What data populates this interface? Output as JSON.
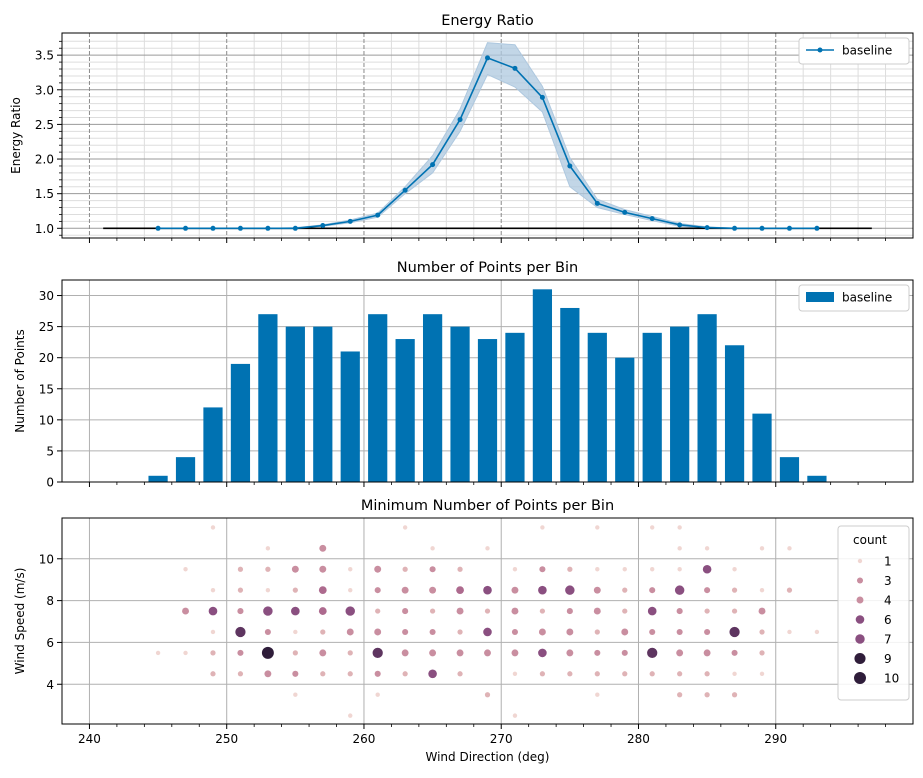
{
  "colors": {
    "baseline": "#0072b2",
    "band": "#aec8df",
    "grid_major": "#b0b0b0",
    "grid_minor": "#dddddd",
    "axis": "#000000",
    "hue": [
      "#f0d6d2",
      "#dfb3b6",
      "#c98ea0",
      "#ad6a8e",
      "#8a4f80",
      "#5e3560",
      "#2f1d3a"
    ]
  },
  "chart_data": [
    {
      "type": "line",
      "title": "Energy Ratio",
      "xlabel": "",
      "ylabel": "Energy Ratio",
      "xlim": [
        238,
        300
      ],
      "ylim": [
        0.86,
        3.82
      ],
      "yticks": [
        1.0,
        1.5,
        2.0,
        2.5,
        3.0,
        3.5
      ],
      "ytick_labels": [
        "1.0",
        "1.5",
        "2.0",
        "2.5",
        "3.0",
        "3.5"
      ],
      "grid": "major and minor",
      "legend": "top-right",
      "series": [
        {
          "name": "baseline",
          "x": [
            245,
            247,
            249,
            251,
            253,
            255,
            257,
            259,
            261,
            263,
            265,
            267,
            269,
            271,
            273,
            275,
            277,
            279,
            281,
            283,
            285,
            287,
            289,
            291,
            293
          ],
          "values": [
            1.0,
            1.0,
            1.0,
            1.0,
            1.0,
            1.0,
            1.04,
            1.1,
            1.19,
            1.55,
            1.92,
            2.57,
            3.46,
            3.31,
            2.89,
            1.9,
            1.36,
            1.23,
            1.14,
            1.05,
            1.01,
            1.0,
            1.0,
            1.0,
            1.0
          ],
          "lower": [
            1.0,
            1.0,
            1.0,
            1.0,
            1.0,
            1.0,
            1.03,
            1.08,
            1.16,
            1.5,
            1.8,
            2.4,
            3.22,
            3.04,
            2.68,
            1.6,
            1.3,
            1.2,
            1.11,
            1.03,
            1.0,
            1.0,
            1.0,
            1.0,
            1.0
          ],
          "upper": [
            1.0,
            1.0,
            1.0,
            1.0,
            1.0,
            1.01,
            1.05,
            1.12,
            1.22,
            1.6,
            2.05,
            2.72,
            3.68,
            3.65,
            3.05,
            2.02,
            1.42,
            1.27,
            1.17,
            1.07,
            1.02,
            1.0,
            1.0,
            1.0,
            1.0
          ]
        }
      ],
      "reference_line": {
        "x": [
          241,
          297
        ],
        "y": 1.0
      }
    },
    {
      "type": "bar",
      "title": "Number of Points per Bin",
      "xlabel": "",
      "ylabel": "Number of Points",
      "xlim": [
        238,
        300
      ],
      "ylim": [
        0,
        32.5
      ],
      "yticks": [
        0,
        5,
        10,
        15,
        20,
        25,
        30
      ],
      "grid": "major",
      "legend": "top-right",
      "bar_width": 1.4,
      "x": [
        245,
        247,
        249,
        251,
        253,
        255,
        257,
        259,
        261,
        263,
        265,
        267,
        269,
        271,
        273,
        275,
        277,
        279,
        281,
        283,
        285,
        287,
        289,
        291,
        293
      ],
      "series": [
        {
          "name": "baseline",
          "values": [
            1,
            4,
            12,
            19,
            27,
            25,
            25,
            21,
            27,
            23,
            27,
            25,
            23,
            24,
            31,
            28,
            24,
            20,
            24,
            25,
            27,
            22,
            11,
            4,
            1
          ]
        }
      ]
    },
    {
      "type": "scatter",
      "title": "Minimum Number of Points per Bin",
      "xlabel": "Wind Direction (deg)",
      "ylabel": "Wind Speed (m/s)",
      "xlim": [
        238,
        300
      ],
      "ylim": [
        2.1,
        11.95
      ],
      "xticks": [
        240,
        250,
        260,
        270,
        280,
        290
      ],
      "yticks": [
        4,
        6,
        8,
        10
      ],
      "grid": "major",
      "legend": "top-right",
      "legend_title": "count",
      "legend_entries": [
        1,
        3,
        4,
        6,
        7,
        9,
        10
      ],
      "points": [
        [
          245,
          5.5,
          1
        ],
        [
          247,
          9.5,
          1
        ],
        [
          247,
          7.5,
          4
        ],
        [
          247,
          5.5,
          1
        ],
        [
          249,
          11.5,
          1
        ],
        [
          249,
          8.5,
          1
        ],
        [
          249,
          7.5,
          6
        ],
        [
          249,
          6.5,
          1
        ],
        [
          249,
          5.5,
          2
        ],
        [
          249,
          4.5,
          2
        ],
        [
          251,
          9.5,
          2
        ],
        [
          251,
          8.5,
          2
        ],
        [
          251,
          7.5,
          3
        ],
        [
          251,
          6.5,
          8
        ],
        [
          251,
          5.5,
          3
        ],
        [
          251,
          4.5,
          2
        ],
        [
          253,
          10.5,
          1
        ],
        [
          253,
          9.5,
          2
        ],
        [
          253,
          8.5,
          1
        ],
        [
          253,
          7.5,
          7
        ],
        [
          253,
          6.5,
          3
        ],
        [
          253,
          5.5,
          10
        ],
        [
          253,
          4.5,
          4
        ],
        [
          255,
          9.5,
          4
        ],
        [
          255,
          8.5,
          2
        ],
        [
          255,
          7.5,
          6
        ],
        [
          255,
          6.5,
          1
        ],
        [
          255,
          5.5,
          2
        ],
        [
          255,
          4.5,
          3
        ],
        [
          255,
          3.5,
          1
        ],
        [
          257,
          10.5,
          4
        ],
        [
          257,
          9.5,
          4
        ],
        [
          257,
          8.5,
          5
        ],
        [
          257,
          7.5,
          5
        ],
        [
          257,
          6.5,
          2
        ],
        [
          257,
          5.5,
          4
        ],
        [
          257,
          4.5,
          2
        ],
        [
          259,
          9.5,
          1
        ],
        [
          259,
          8.5,
          1
        ],
        [
          259,
          7.5,
          7
        ],
        [
          259,
          6.5,
          4
        ],
        [
          259,
          5.5,
          2
        ],
        [
          259,
          4.5,
          2
        ],
        [
          259,
          2.5,
          1
        ],
        [
          261,
          9.5,
          4
        ],
        [
          261,
          8.5,
          3
        ],
        [
          261,
          7.5,
          2
        ],
        [
          261,
          6.5,
          4
        ],
        [
          261,
          5.5,
          8
        ],
        [
          261,
          4.5,
          3
        ],
        [
          261,
          3.5,
          1
        ],
        [
          263,
          11.5,
          1
        ],
        [
          263,
          9.5,
          2
        ],
        [
          263,
          8.5,
          4
        ],
        [
          263,
          7.5,
          3
        ],
        [
          263,
          6.5,
          3
        ],
        [
          263,
          5.5,
          4
        ],
        [
          263,
          4.5,
          2
        ],
        [
          265,
          10.5,
          1
        ],
        [
          265,
          9.5,
          3
        ],
        [
          265,
          8.5,
          4
        ],
        [
          265,
          7.5,
          2
        ],
        [
          265,
          6.5,
          3
        ],
        [
          265,
          5.5,
          4
        ],
        [
          265,
          4.5,
          6
        ],
        [
          267,
          9.5,
          2
        ],
        [
          267,
          8.5,
          5
        ],
        [
          267,
          7.5,
          4
        ],
        [
          267,
          6.5,
          2
        ],
        [
          267,
          5.5,
          4
        ],
        [
          267,
          4.5,
          2
        ],
        [
          269,
          10.5,
          1
        ],
        [
          269,
          8.5,
          6
        ],
        [
          269,
          7.5,
          2
        ],
        [
          269,
          6.5,
          6
        ],
        [
          269,
          5.5,
          4
        ],
        [
          269,
          3.5,
          2
        ],
        [
          271,
          9.5,
          1
        ],
        [
          271,
          8.5,
          4
        ],
        [
          271,
          7.5,
          4
        ],
        [
          271,
          6.5,
          3
        ],
        [
          271,
          5.5,
          4
        ],
        [
          271,
          4.5,
          1
        ],
        [
          271,
          2.5,
          1
        ],
        [
          273,
          11.5,
          1
        ],
        [
          273,
          9.5,
          3
        ],
        [
          273,
          8.5,
          6
        ],
        [
          273,
          7.5,
          2
        ],
        [
          273,
          6.5,
          4
        ],
        [
          273,
          5.5,
          6
        ],
        [
          273,
          4.5,
          2
        ],
        [
          275,
          9.5,
          2
        ],
        [
          275,
          8.5,
          7
        ],
        [
          275,
          7.5,
          3
        ],
        [
          275,
          6.5,
          4
        ],
        [
          275,
          5.5,
          4
        ],
        [
          275,
          4.5,
          2
        ],
        [
          277,
          11.5,
          1
        ],
        [
          277,
          9.5,
          1
        ],
        [
          277,
          8.5,
          4
        ],
        [
          277,
          7.5,
          4
        ],
        [
          277,
          6.5,
          2
        ],
        [
          277,
          5.5,
          3
        ],
        [
          277,
          4.5,
          2
        ],
        [
          277,
          3.5,
          1
        ],
        [
          279,
          9.5,
          1
        ],
        [
          279,
          8.5,
          2
        ],
        [
          279,
          7.5,
          2
        ],
        [
          279,
          6.5,
          4
        ],
        [
          279,
          5.5,
          3
        ],
        [
          279,
          4.5,
          2
        ],
        [
          281,
          11.5,
          1
        ],
        [
          281,
          9.5,
          1
        ],
        [
          281,
          8.5,
          3
        ],
        [
          281,
          7.5,
          6
        ],
        [
          281,
          6.5,
          3
        ],
        [
          281,
          5.5,
          8
        ],
        [
          281,
          4.5,
          2
        ],
        [
          283,
          11.5,
          1
        ],
        [
          283,
          10.5,
          1
        ],
        [
          283,
          9.5,
          1
        ],
        [
          283,
          8.5,
          7
        ],
        [
          283,
          7.5,
          3
        ],
        [
          283,
          6.5,
          3
        ],
        [
          283,
          5.5,
          4
        ],
        [
          283,
          4.5,
          2
        ],
        [
          283,
          3.5,
          2
        ],
        [
          285,
          10.5,
          1
        ],
        [
          285,
          9.5,
          6
        ],
        [
          285,
          8.5,
          3
        ],
        [
          285,
          7.5,
          2
        ],
        [
          285,
          6.5,
          3
        ],
        [
          285,
          5.5,
          4
        ],
        [
          285,
          4.5,
          2
        ],
        [
          285,
          3.5,
          2
        ],
        [
          287,
          9.5,
          1
        ],
        [
          287,
          8.5,
          2
        ],
        [
          287,
          7.5,
          2
        ],
        [
          287,
          6.5,
          8
        ],
        [
          287,
          5.5,
          3
        ],
        [
          287,
          4.5,
          1
        ],
        [
          287,
          3.5,
          2
        ],
        [
          289,
          10.5,
          1
        ],
        [
          289,
          8.5,
          1
        ],
        [
          289,
          7.5,
          4
        ],
        [
          289,
          6.5,
          2
        ],
        [
          289,
          5.5,
          2
        ],
        [
          289,
          4.5,
          1
        ],
        [
          291,
          10.5,
          1
        ],
        [
          291,
          8.5,
          2
        ],
        [
          291,
          6.5,
          1
        ],
        [
          293,
          6.5,
          1
        ]
      ]
    }
  ]
}
